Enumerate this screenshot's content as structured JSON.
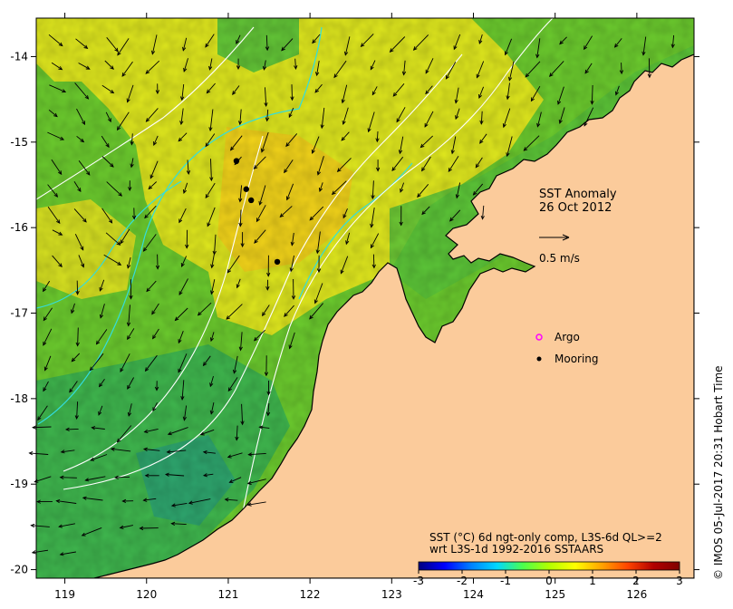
{
  "title": "SST Anomaly",
  "date": "26 Oct 2012",
  "vector_scale_label": "0.5 m/s",
  "legend": [
    {
      "label": "Argo",
      "marker": "open-circle",
      "color": "#ff00ff"
    },
    {
      "label": "Mooring",
      "marker": "filled-circle",
      "color": "#000000"
    }
  ],
  "product_line1": "SST (°C) 6d ngt-only comp, L3S-6d QL>=2",
  "product_line2": "wrt L3S-1d 1992-2016 SSTAARS",
  "credit": "© IMOS 05-Jul-2017 20:31 Hobart Time",
  "colorbar": {
    "min": -3,
    "max": 3,
    "ticks": [
      "-3",
      "-2",
      "-1",
      "0",
      "1",
      "2",
      "3"
    ],
    "colors": [
      "#00007f",
      "#0000ff",
      "#007fff",
      "#00d8ff",
      "#4cff4c",
      "#b2ff00",
      "#ffff00",
      "#ffa500",
      "#ff4500",
      "#b20000",
      "#7f0000"
    ]
  },
  "axes": {
    "x_ticks": [
      "119",
      "120",
      "121",
      "122",
      "123",
      "124",
      "125",
      "126"
    ],
    "y_ticks": [
      "-14",
      "-15",
      "-16",
      "-17",
      "-18",
      "-19",
      "-20"
    ],
    "lon_range": [
      118.65,
      126.7
    ],
    "lat_range": [
      -20.1,
      -13.55
    ]
  },
  "moorings": [
    {
      "lon": 121.1,
      "lat": -15.22
    },
    {
      "lon": 121.22,
      "lat": -15.55
    },
    {
      "lon": 121.28,
      "lat": -15.68
    },
    {
      "lon": 121.6,
      "lat": -16.4
    }
  ],
  "colors": {
    "land": "#fbcb9b",
    "sea_base": "#6ccc2e",
    "anomaly_warm": "#f0ee1c",
    "anomaly_cool": "#2cae5a",
    "contour": "#ffffff",
    "bathymetry": "#33dddd"
  }
}
